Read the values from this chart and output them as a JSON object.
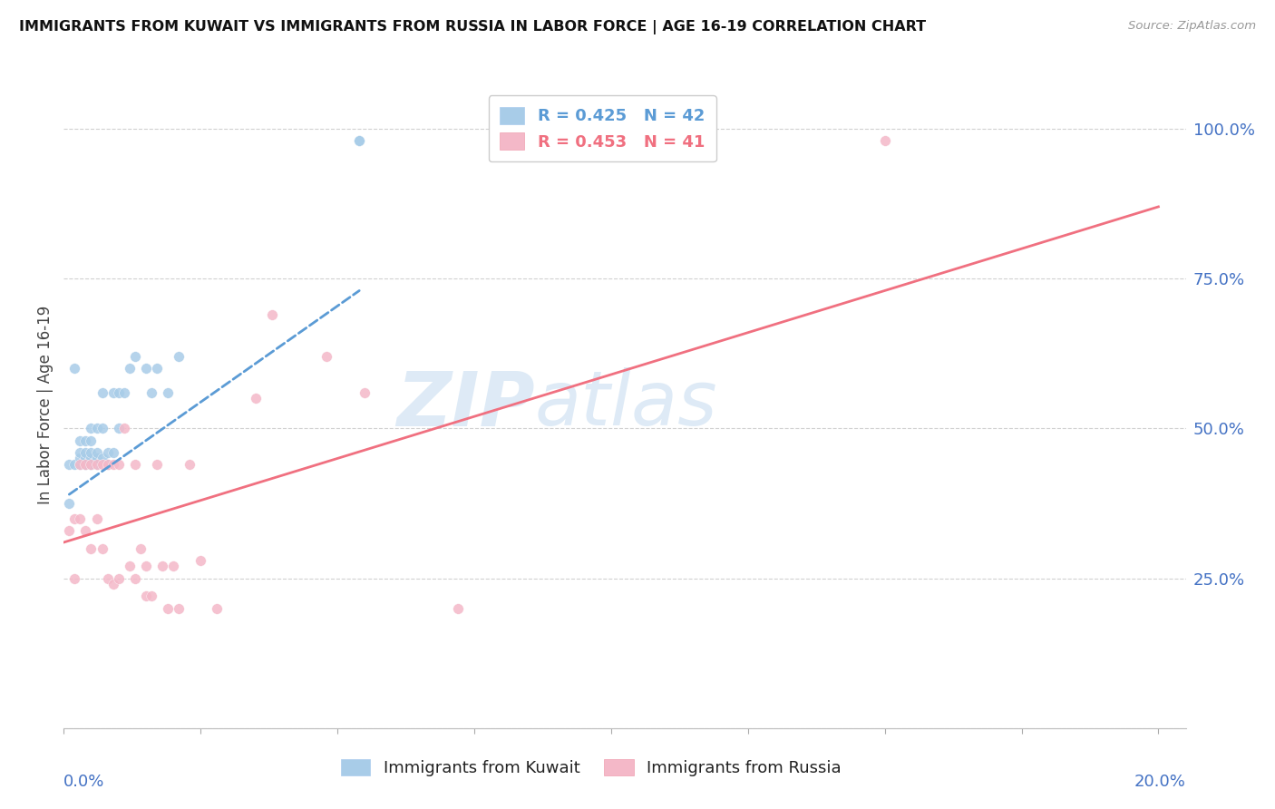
{
  "title": "IMMIGRANTS FROM KUWAIT VS IMMIGRANTS FROM RUSSIA IN LABOR FORCE | AGE 16-19 CORRELATION CHART",
  "source": "Source: ZipAtlas.com",
  "ylabel": "In Labor Force | Age 16-19",
  "watermark_line1": "ZIP",
  "watermark_line2": "atlas",
  "legend_kuwait": "R = 0.425   N = 42",
  "legend_russia": "R = 0.453   N = 41",
  "legend_label_kuwait": "Immigrants from Kuwait",
  "legend_label_russia": "Immigrants from Russia",
  "color_kuwait": "#a8cce8",
  "color_russia": "#f4b8c8",
  "color_kuwait_line": "#5b9bd5",
  "color_russia_line": "#f07080",
  "color_axis_labels": "#4472c4",
  "kuwait_scatter_x": [
    0.001,
    0.001,
    0.002,
    0.002,
    0.003,
    0.003,
    0.003,
    0.003,
    0.004,
    0.004,
    0.004,
    0.004,
    0.004,
    0.005,
    0.005,
    0.005,
    0.005,
    0.005,
    0.005,
    0.006,
    0.006,
    0.006,
    0.006,
    0.007,
    0.007,
    0.007,
    0.008,
    0.008,
    0.009,
    0.009,
    0.01,
    0.01,
    0.011,
    0.012,
    0.013,
    0.015,
    0.016,
    0.017,
    0.019,
    0.021,
    0.054,
    0.054
  ],
  "kuwait_scatter_y": [
    0.375,
    0.44,
    0.6,
    0.44,
    0.44,
    0.45,
    0.46,
    0.48,
    0.44,
    0.44,
    0.45,
    0.46,
    0.48,
    0.44,
    0.44,
    0.45,
    0.46,
    0.48,
    0.5,
    0.44,
    0.45,
    0.46,
    0.5,
    0.45,
    0.5,
    0.56,
    0.44,
    0.46,
    0.46,
    0.56,
    0.5,
    0.56,
    0.56,
    0.6,
    0.62,
    0.6,
    0.56,
    0.6,
    0.56,
    0.62,
    0.98,
    0.98
  ],
  "russia_scatter_x": [
    0.001,
    0.002,
    0.002,
    0.003,
    0.003,
    0.004,
    0.004,
    0.005,
    0.005,
    0.006,
    0.006,
    0.007,
    0.007,
    0.008,
    0.008,
    0.009,
    0.009,
    0.01,
    0.01,
    0.011,
    0.012,
    0.013,
    0.013,
    0.014,
    0.015,
    0.015,
    0.016,
    0.017,
    0.018,
    0.019,
    0.02,
    0.021,
    0.023,
    0.025,
    0.028,
    0.035,
    0.038,
    0.048,
    0.055,
    0.072,
    0.15
  ],
  "russia_scatter_y": [
    0.33,
    0.25,
    0.35,
    0.44,
    0.35,
    0.33,
    0.44,
    0.3,
    0.44,
    0.35,
    0.44,
    0.3,
    0.44,
    0.25,
    0.44,
    0.24,
    0.44,
    0.25,
    0.44,
    0.5,
    0.27,
    0.25,
    0.44,
    0.3,
    0.22,
    0.27,
    0.22,
    0.44,
    0.27,
    0.2,
    0.27,
    0.2,
    0.44,
    0.28,
    0.2,
    0.55,
    0.69,
    0.62,
    0.56,
    0.2,
    0.98
  ],
  "kuwait_line_x": [
    0.001,
    0.054
  ],
  "kuwait_line_y": [
    0.39,
    0.73
  ],
  "russia_line_x": [
    0.0,
    0.2
  ],
  "russia_line_y": [
    0.31,
    0.87
  ],
  "xlim": [
    0.0,
    0.205
  ],
  "ylim": [
    0.0,
    1.08
  ],
  "x_ticks": [
    0.0,
    0.025,
    0.05,
    0.075,
    0.1,
    0.125,
    0.15,
    0.175,
    0.2
  ],
  "y_tick_positions": [
    0.0,
    0.25,
    0.5,
    0.75,
    1.0
  ],
  "y_tick_labels": [
    "",
    "25.0%",
    "50.0%",
    "75.0%",
    "100.0%"
  ]
}
